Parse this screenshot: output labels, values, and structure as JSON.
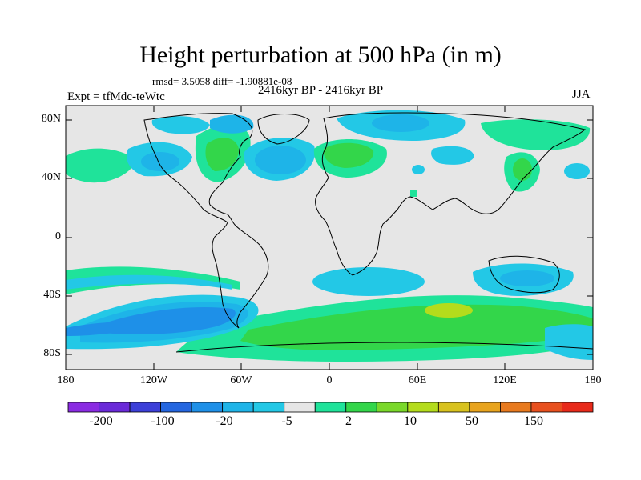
{
  "title": "Height perturbation at 500 hPa (in m)",
  "stats": "rmsd= 3.5058 diff= -1.90881e-08",
  "period": "2416kyr BP - 2416kyr BP",
  "expt": "Expt = tfMdc-teWtc",
  "season": "JJA",
  "lat_labels": [
    "80N",
    "40N",
    "0",
    "40S",
    "80S"
  ],
  "lon_labels": [
    "180",
    "120W",
    "60W",
    "0",
    "60E",
    "120E",
    "180"
  ],
  "colorbar": {
    "labels": [
      "-200",
      "-100",
      "-20",
      "-5",
      "2",
      "10",
      "50",
      "150"
    ],
    "colors": [
      "#8a2be2",
      "#6a2ad8",
      "#3c3fd8",
      "#2466e0",
      "#1e90e8",
      "#1eb4e8",
      "#23c8e6",
      "#e6e6e6",
      "#1fe39a",
      "#33d64a",
      "#7ad82a",
      "#b4dc1c",
      "#d8c21e",
      "#e8a41e",
      "#e87a1e",
      "#e8501e",
      "#e82a1a"
    ]
  },
  "colors": {
    "background_fill": "#e6e6e6",
    "pale_blue": "#23c8e6",
    "mid_blue": "#1eb4e8",
    "blue": "#1e90e8",
    "dark_blue": "#2466e0",
    "teal_green": "#1fe39a",
    "green": "#33d64a",
    "yellow_green": "#b4dc1c"
  }
}
